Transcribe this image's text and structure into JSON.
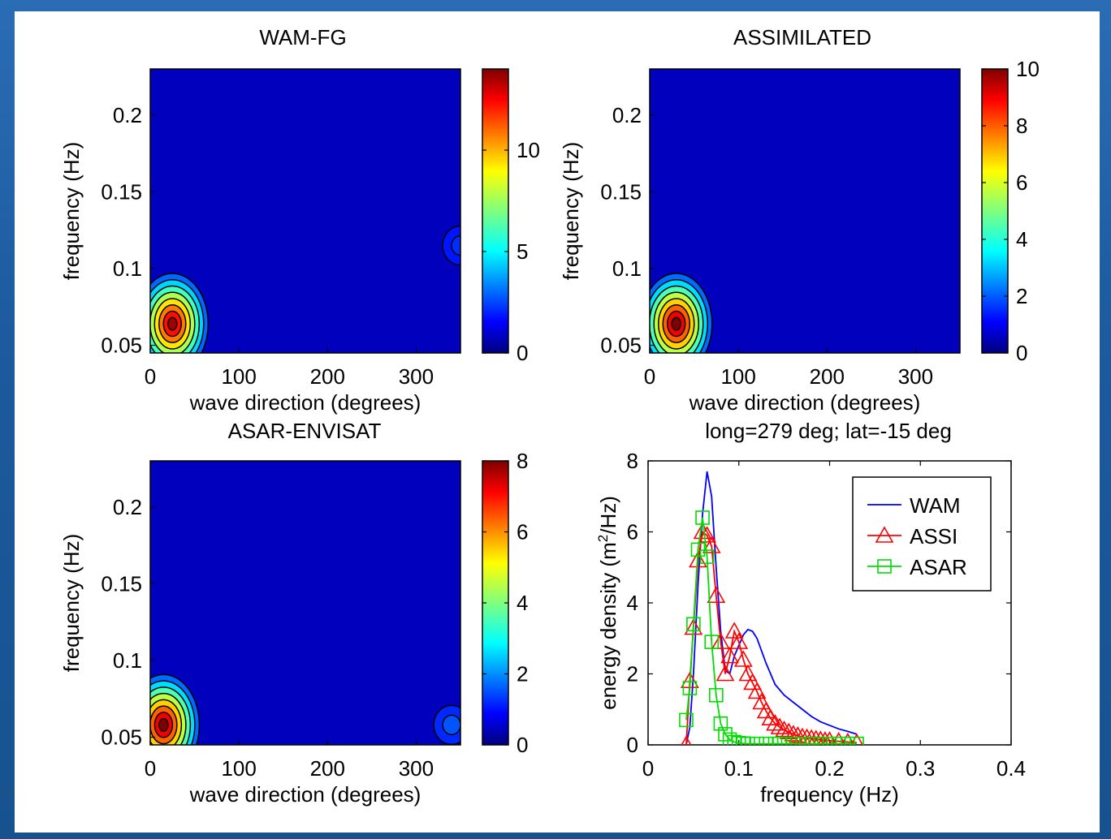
{
  "chart_data": [
    {
      "type": "heatmap",
      "title": "WAM-FG",
      "xlabel": "wave direction (degrees)",
      "ylabel": "frequency (Hz)",
      "xlim": [
        0,
        350
      ],
      "ylim": [
        0.045,
        0.23
      ],
      "xticks": [
        0,
        100,
        200,
        300
      ],
      "yticks": [
        0.05,
        0.1,
        0.15,
        0.2
      ],
      "colorbar": {
        "range": [
          0,
          14
        ],
        "ticks": [
          0,
          5,
          10
        ]
      },
      "peaks": [
        {
          "direction": 25,
          "frequency": 0.064,
          "value": 13.5
        },
        {
          "direction": 350,
          "frequency": 0.115,
          "value": 0.8
        }
      ]
    },
    {
      "type": "heatmap",
      "title": "ASSIMILATED",
      "xlabel": "wave direction (degrees)",
      "ylabel": "frequency (Hz)",
      "xlim": [
        0,
        350
      ],
      "ylim": [
        0.045,
        0.23
      ],
      "xticks": [
        0,
        100,
        200,
        300
      ],
      "yticks": [
        0.05,
        0.1,
        0.15,
        0.2
      ],
      "colorbar": {
        "range": [
          0,
          10
        ],
        "ticks": [
          0,
          2,
          4,
          6,
          8,
          10
        ]
      },
      "peaks": [
        {
          "direction": 30,
          "frequency": 0.064,
          "value": 10
        }
      ]
    },
    {
      "type": "heatmap",
      "title": "ASAR-ENVISAT",
      "xlabel": "wave direction (degrees)",
      "ylabel": "frequency (Hz)",
      "xlim": [
        0,
        350
      ],
      "ylim": [
        0.045,
        0.23
      ],
      "xticks": [
        0,
        100,
        200,
        300
      ],
      "yticks": [
        0.05,
        0.1,
        0.15,
        0.2
      ],
      "colorbar": {
        "range": [
          0,
          8
        ],
        "ticks": [
          0,
          2,
          4,
          6,
          8
        ]
      },
      "peaks": [
        {
          "direction": 15,
          "frequency": 0.058,
          "value": 8
        },
        {
          "direction": 340,
          "frequency": 0.058,
          "value": 0.8
        }
      ]
    },
    {
      "type": "line",
      "title": "long=279 deg; lat=-15 deg",
      "xlabel": "frequency (Hz)",
      "ylabel_main": "energy density (m",
      "ylabel_sup": "2",
      "ylabel_tail": "/Hz)",
      "xlim": [
        0,
        0.4
      ],
      "ylim": [
        0,
        8
      ],
      "xticks": [
        0,
        0.1,
        0.2,
        0.3,
        0.4
      ],
      "yticks": [
        0,
        2,
        4,
        6,
        8
      ],
      "legend": "top-right",
      "series": [
        {
          "name": "WAM",
          "color": "#0000ff",
          "marker": "none",
          "x": [
            0.042,
            0.046,
            0.05,
            0.055,
            0.06,
            0.065,
            0.07,
            0.075,
            0.08,
            0.085,
            0.09,
            0.095,
            0.1,
            0.105,
            0.11,
            0.115,
            0.12,
            0.13,
            0.14,
            0.15,
            0.16,
            0.17,
            0.18,
            0.19,
            0.2,
            0.21,
            0.22,
            0.23
          ],
          "y": [
            0.0,
            0.5,
            2.0,
            4.5,
            6.5,
            7.7,
            7.0,
            5.0,
            3.2,
            2.1,
            2.0,
            2.5,
            2.8,
            3.1,
            3.25,
            3.2,
            3.0,
            2.3,
            1.7,
            1.4,
            1.2,
            1.0,
            0.8,
            0.65,
            0.55,
            0.45,
            0.38,
            0.3
          ]
        },
        {
          "name": "ASSI",
          "color": "#ff0000",
          "marker": "triangle",
          "x": [
            0.042,
            0.046,
            0.05,
            0.055,
            0.06,
            0.065,
            0.07,
            0.075,
            0.08,
            0.085,
            0.09,
            0.095,
            0.1,
            0.105,
            0.11,
            0.115,
            0.12,
            0.125,
            0.13,
            0.135,
            0.14,
            0.145,
            0.15,
            0.155,
            0.16,
            0.165,
            0.17,
            0.175,
            0.18,
            0.185,
            0.19,
            0.195,
            0.2,
            0.21,
            0.22,
            0.23
          ],
          "y": [
            0.0,
            1.8,
            3.3,
            5.2,
            6.0,
            5.9,
            5.6,
            4.2,
            2.9,
            2.0,
            2.5,
            3.2,
            2.9,
            2.4,
            2.0,
            1.75,
            1.5,
            1.2,
            0.95,
            0.75,
            0.6,
            0.5,
            0.42,
            0.36,
            0.3,
            0.26,
            0.22,
            0.2,
            0.18,
            0.16,
            0.14,
            0.12,
            0.12,
            0.1,
            0.08,
            0.06
          ]
        },
        {
          "name": "ASAR",
          "color": "#00dd00",
          "marker": "square",
          "x": [
            0.042,
            0.046,
            0.05,
            0.055,
            0.06,
            0.065,
            0.07,
            0.075,
            0.08,
            0.085,
            0.09,
            0.095,
            0.1,
            0.105,
            0.11,
            0.12,
            0.13,
            0.14,
            0.145,
            0.15,
            0.16,
            0.17,
            0.18,
            0.19,
            0.2,
            0.21,
            0.22,
            0.23
          ],
          "y": [
            0.7,
            1.6,
            3.4,
            5.5,
            6.4,
            5.3,
            2.9,
            1.4,
            0.6,
            0.3,
            0.15,
            0.08,
            0.05,
            0.04,
            0.03,
            0.03,
            0.03,
            0.03,
            0.03,
            0.03,
            0.03,
            0.03,
            0.03,
            0.03,
            0.03,
            0.03,
            0.03,
            0.03
          ]
        }
      ]
    }
  ]
}
